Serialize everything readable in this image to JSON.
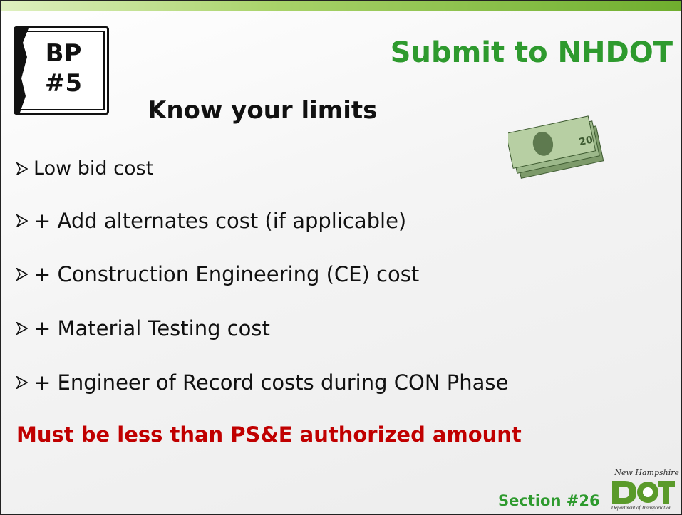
{
  "badge": {
    "lines": [
      "BP",
      "#5"
    ]
  },
  "title": "Submit to NHDOT",
  "subtitle": "Know your limits",
  "bullets": [
    "Low bid cost",
    "+ Add alternates cost (if applicable)",
    "+ Construction Engineering (CE) cost",
    "+ Material Testing cost",
    "+ Engineer of Record costs during CON Phase"
  ],
  "warning": "Must be less than PS&E authorized amount",
  "footer": {
    "section": "Section #26",
    "logo_script": "New Hampshire",
    "logo_caption": "Department of Transportation"
  }
}
